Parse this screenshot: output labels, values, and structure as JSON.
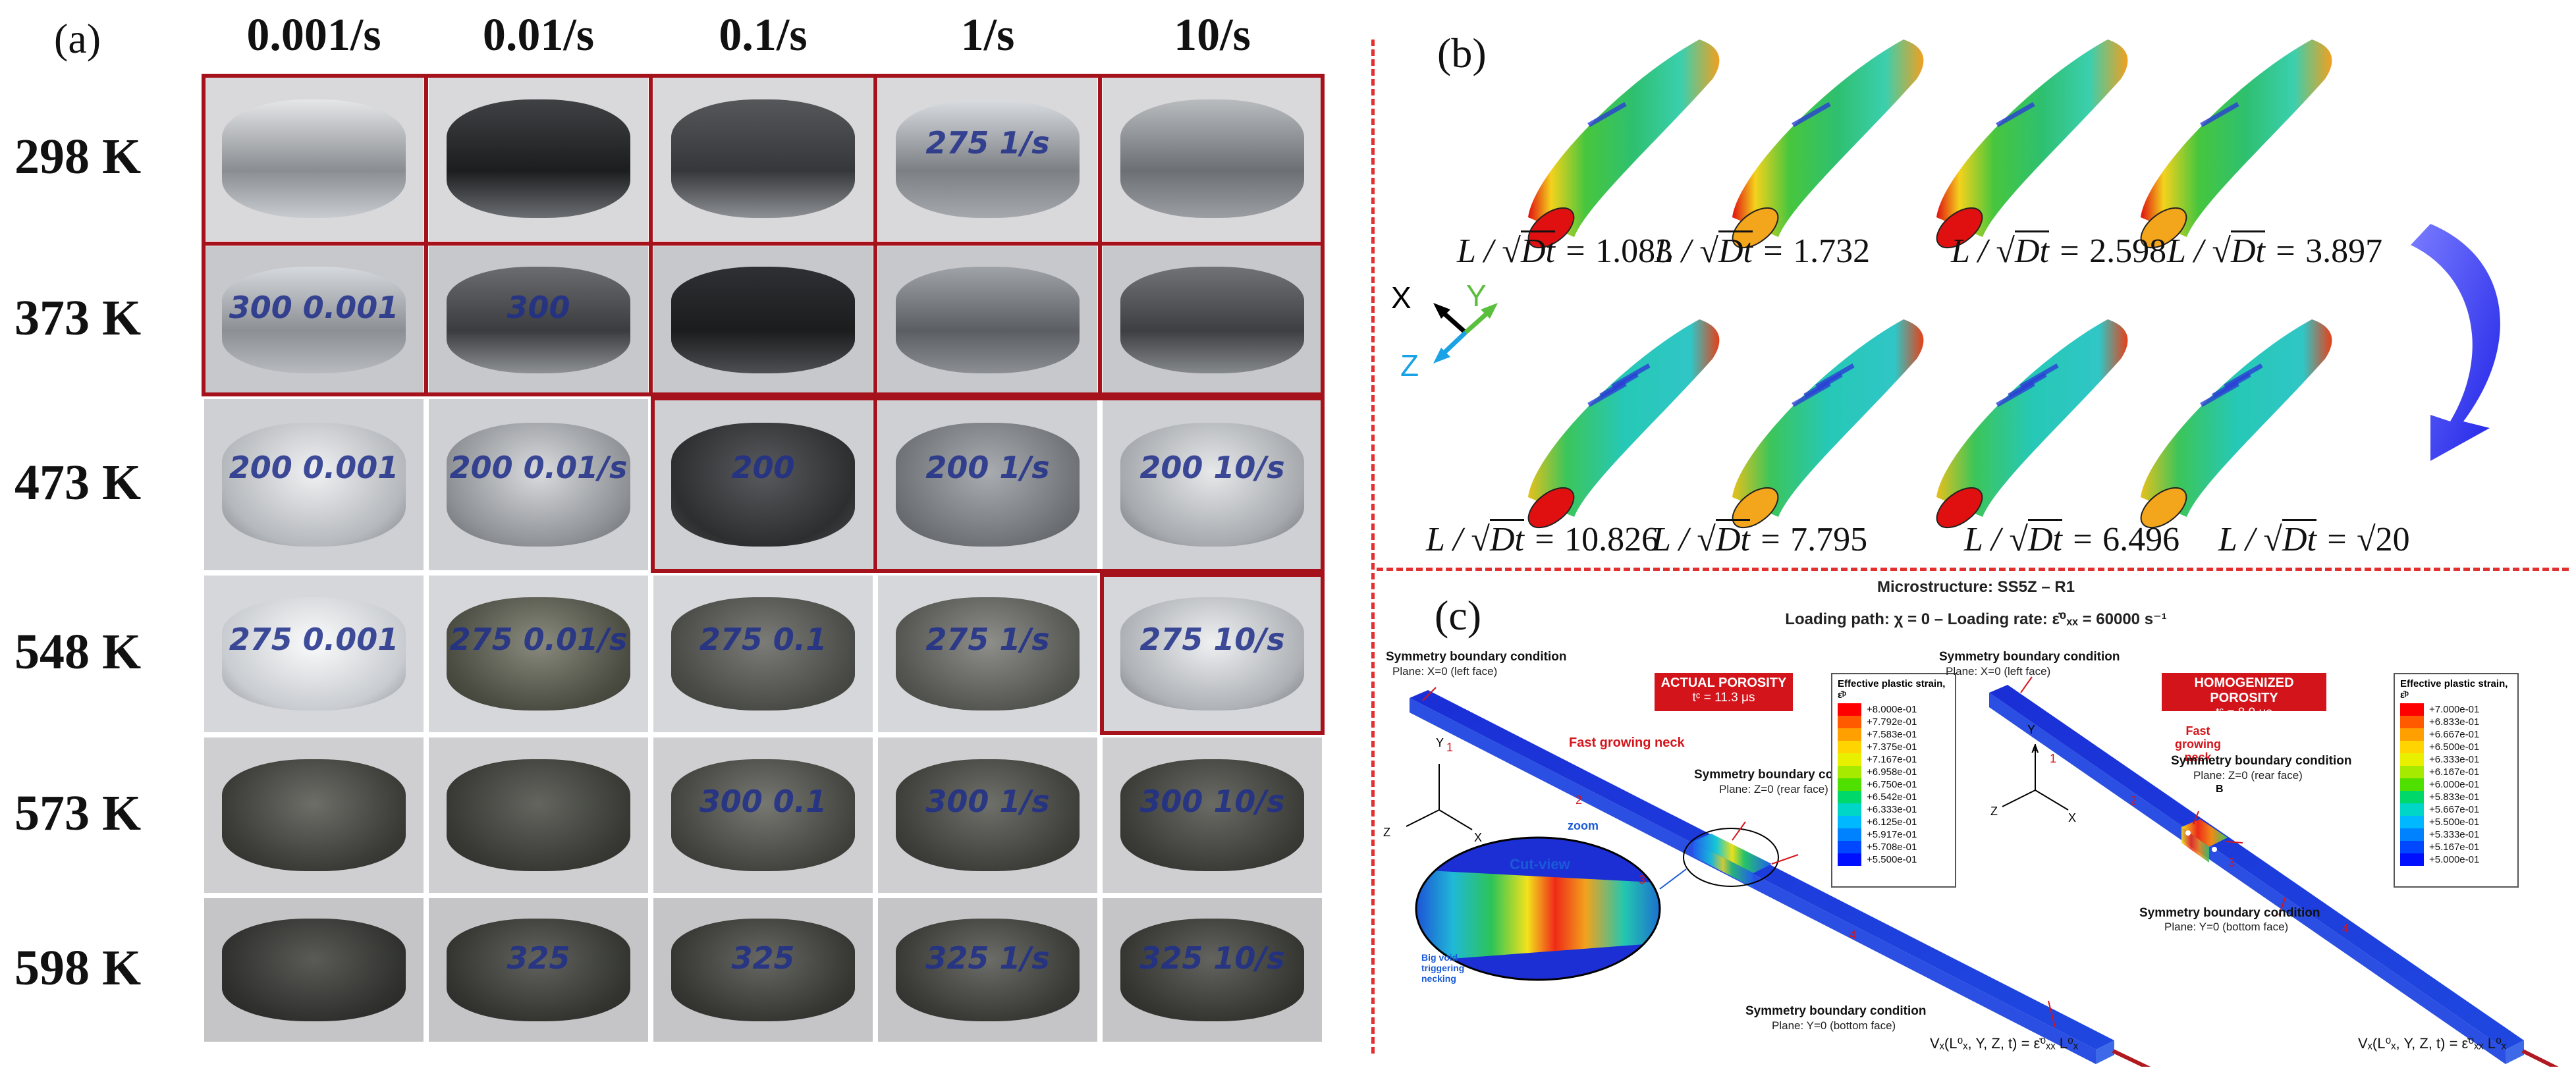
{
  "panel_a": {
    "label": "(a)",
    "rates": [
      "0.001/s",
      "0.01/s",
      "0.1/s",
      "1/s",
      "10/s"
    ],
    "temps": [
      "298 K",
      "373 K",
      "473 K",
      "548 K",
      "573 K",
      "598 K"
    ],
    "specimen_marks": [
      [
        "",
        "",
        "",
        "275 1/s",
        ""
      ],
      [
        "300 0.001",
        "300",
        "",
        "",
        ""
      ],
      [
        "200 0.001",
        "200 0.01/s",
        "200",
        "200 1/s",
        "200 10/s"
      ],
      [
        "275 0.001",
        "275 0.01/s",
        "275 0.1",
        "275 1/s",
        "275 10/s"
      ],
      [
        "",
        "",
        "300 0.1",
        "300 1/s",
        "300 10/s"
      ],
      [
        "",
        "325",
        "325",
        "325 1/s",
        "325 10/s"
      ]
    ]
  },
  "panel_b": {
    "label": "(b)",
    "axes": {
      "x": "X",
      "y": "Y",
      "z": "Z"
    },
    "equation_prefix": "L / √",
    "equation_radicand": "Dt",
    "top_values": [
      "1.083",
      "1.732",
      "2.598",
      "3.897"
    ],
    "bottom_values": [
      "10.826",
      "7.795",
      "6.496",
      "√20"
    ]
  },
  "panel_c": {
    "label": "(c)",
    "title": "Microstructure: SS5Z – R1",
    "subtitle": "Loading path: χ = 0 – Loading rate: ε̇⁰ₓₓ = 60000 s⁻¹",
    "left": {
      "box_title": "ACTUAL POROSITY",
      "box_time": "tᶜ = 11.3 μs",
      "sym1_title": "Symmetry boundary condition",
      "sym1_plane": "Plane: X=0 (left face)",
      "sym2_title": "Symmetry boundary condition",
      "sym2_plane": "Plane: Z=0 (rear face)",
      "sym3_title": "Symmetry boundary condition",
      "sym3_plane": "Plane: Y=0 (bottom face)",
      "neck": "Fast growing neck",
      "zoom": "zoom",
      "cut": "Cut-view",
      "void": "Big void triggering necking",
      "velocity": "Vₓ(L⁰ₓ, Y, Z, t) = ε̇⁰ₓₓ L⁰ₓ",
      "legend_title": "Effective plastic strain, ε̄ᵖ",
      "legend_values": [
        "+8.000e-01",
        "+7.792e-01",
        "+7.583e-01",
        "+7.375e-01",
        "+7.167e-01",
        "+6.958e-01",
        "+6.750e-01",
        "+6.542e-01",
        "+6.333e-01",
        "+6.125e-01",
        "+5.917e-01",
        "+5.708e-01",
        "+5.500e-01"
      ]
    },
    "right": {
      "box_title": "HOMOGENIZED POROSITY",
      "box_time": "tᶜ = 8.9 μs",
      "sym1_title": "Symmetry boundary condition",
      "sym1_plane": "Plane: X=0 (left face)",
      "sym2_title": "Symmetry boundary condition",
      "sym2_plane": "Plane: Z=0 (rear face)",
      "sym3_title": "Symmetry boundary condition",
      "sym3_plane": "Plane: Y=0 (bottom face)",
      "neck": "Fast growing neck",
      "velocity": "Vₓ(L⁰ₓ, Y, Z, t) = ε̇⁰ₓₓ L⁰ₓ",
      "legend_title": "Effective plastic strain, ε̄ᵖ",
      "legend_values": [
        "+7.000e-01",
        "+6.833e-01",
        "+6.667e-01",
        "+6.500e-01",
        "+6.333e-01",
        "+6.167e-01",
        "+6.000e-01",
        "+5.833e-01",
        "+5.667e-01",
        "+5.500e-01",
        "+5.333e-01",
        "+5.167e-01",
        "+5.000e-01"
      ]
    },
    "face_numbers": [
      "1",
      "2",
      "3",
      "4"
    ],
    "points": [
      "A",
      "B"
    ],
    "axes": {
      "x": "X",
      "y": "Y",
      "z": "Z"
    }
  },
  "colors": {
    "frame_red": "#a5121b",
    "divider_red": "#e23030",
    "ink_blue": "#1f2f8a"
  }
}
